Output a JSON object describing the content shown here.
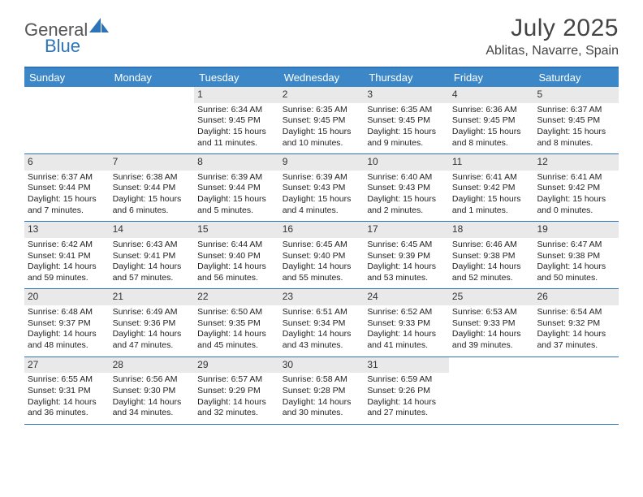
{
  "brand": {
    "part1": "General",
    "part2": "Blue"
  },
  "title": "July 2025",
  "location": "Ablitas, Navarre, Spain",
  "colors": {
    "accent": "#3c87c7",
    "rule": "#2d73b8",
    "daynum_bg": "#e9e9e9",
    "text": "#222222",
    "background": "#ffffff"
  },
  "calendar": {
    "dow": [
      "Sunday",
      "Monday",
      "Tuesday",
      "Wednesday",
      "Thursday",
      "Friday",
      "Saturday"
    ],
    "weeks": [
      [
        null,
        null,
        {
          "n": "1",
          "sunrise": "6:34 AM",
          "sunset": "9:45 PM",
          "day_h": "15",
          "day_m": "11"
        },
        {
          "n": "2",
          "sunrise": "6:35 AM",
          "sunset": "9:45 PM",
          "day_h": "15",
          "day_m": "10"
        },
        {
          "n": "3",
          "sunrise": "6:35 AM",
          "sunset": "9:45 PM",
          "day_h": "15",
          "day_m": "9"
        },
        {
          "n": "4",
          "sunrise": "6:36 AM",
          "sunset": "9:45 PM",
          "day_h": "15",
          "day_m": "8"
        },
        {
          "n": "5",
          "sunrise": "6:37 AM",
          "sunset": "9:45 PM",
          "day_h": "15",
          "day_m": "8"
        }
      ],
      [
        {
          "n": "6",
          "sunrise": "6:37 AM",
          "sunset": "9:44 PM",
          "day_h": "15",
          "day_m": "7"
        },
        {
          "n": "7",
          "sunrise": "6:38 AM",
          "sunset": "9:44 PM",
          "day_h": "15",
          "day_m": "6"
        },
        {
          "n": "8",
          "sunrise": "6:39 AM",
          "sunset": "9:44 PM",
          "day_h": "15",
          "day_m": "5"
        },
        {
          "n": "9",
          "sunrise": "6:39 AM",
          "sunset": "9:43 PM",
          "day_h": "15",
          "day_m": "4"
        },
        {
          "n": "10",
          "sunrise": "6:40 AM",
          "sunset": "9:43 PM",
          "day_h": "15",
          "day_m": "2"
        },
        {
          "n": "11",
          "sunrise": "6:41 AM",
          "sunset": "9:42 PM",
          "day_h": "15",
          "day_m": "1"
        },
        {
          "n": "12",
          "sunrise": "6:41 AM",
          "sunset": "9:42 PM",
          "day_h": "15",
          "day_m": "0"
        }
      ],
      [
        {
          "n": "13",
          "sunrise": "6:42 AM",
          "sunset": "9:41 PM",
          "day_h": "14",
          "day_m": "59"
        },
        {
          "n": "14",
          "sunrise": "6:43 AM",
          "sunset": "9:41 PM",
          "day_h": "14",
          "day_m": "57"
        },
        {
          "n": "15",
          "sunrise": "6:44 AM",
          "sunset": "9:40 PM",
          "day_h": "14",
          "day_m": "56"
        },
        {
          "n": "16",
          "sunrise": "6:45 AM",
          "sunset": "9:40 PM",
          "day_h": "14",
          "day_m": "55"
        },
        {
          "n": "17",
          "sunrise": "6:45 AM",
          "sunset": "9:39 PM",
          "day_h": "14",
          "day_m": "53"
        },
        {
          "n": "18",
          "sunrise": "6:46 AM",
          "sunset": "9:38 PM",
          "day_h": "14",
          "day_m": "52"
        },
        {
          "n": "19",
          "sunrise": "6:47 AM",
          "sunset": "9:38 PM",
          "day_h": "14",
          "day_m": "50"
        }
      ],
      [
        {
          "n": "20",
          "sunrise": "6:48 AM",
          "sunset": "9:37 PM",
          "day_h": "14",
          "day_m": "48"
        },
        {
          "n": "21",
          "sunrise": "6:49 AM",
          "sunset": "9:36 PM",
          "day_h": "14",
          "day_m": "47"
        },
        {
          "n": "22",
          "sunrise": "6:50 AM",
          "sunset": "9:35 PM",
          "day_h": "14",
          "day_m": "45"
        },
        {
          "n": "23",
          "sunrise": "6:51 AM",
          "sunset": "9:34 PM",
          "day_h": "14",
          "day_m": "43"
        },
        {
          "n": "24",
          "sunrise": "6:52 AM",
          "sunset": "9:33 PM",
          "day_h": "14",
          "day_m": "41"
        },
        {
          "n": "25",
          "sunrise": "6:53 AM",
          "sunset": "9:33 PM",
          "day_h": "14",
          "day_m": "39"
        },
        {
          "n": "26",
          "sunrise": "6:54 AM",
          "sunset": "9:32 PM",
          "day_h": "14",
          "day_m": "37"
        }
      ],
      [
        {
          "n": "27",
          "sunrise": "6:55 AM",
          "sunset": "9:31 PM",
          "day_h": "14",
          "day_m": "36"
        },
        {
          "n": "28",
          "sunrise": "6:56 AM",
          "sunset": "9:30 PM",
          "day_h": "14",
          "day_m": "34"
        },
        {
          "n": "29",
          "sunrise": "6:57 AM",
          "sunset": "9:29 PM",
          "day_h": "14",
          "day_m": "32"
        },
        {
          "n": "30",
          "sunrise": "6:58 AM",
          "sunset": "9:28 PM",
          "day_h": "14",
          "day_m": "30"
        },
        {
          "n": "31",
          "sunrise": "6:59 AM",
          "sunset": "9:26 PM",
          "day_h": "14",
          "day_m": "27"
        },
        null,
        null
      ]
    ]
  },
  "labels": {
    "sunrise": "Sunrise:",
    "sunset": "Sunset:",
    "daylight": "Daylight:",
    "hours": "hours",
    "and": "and",
    "minutes": "minutes."
  }
}
